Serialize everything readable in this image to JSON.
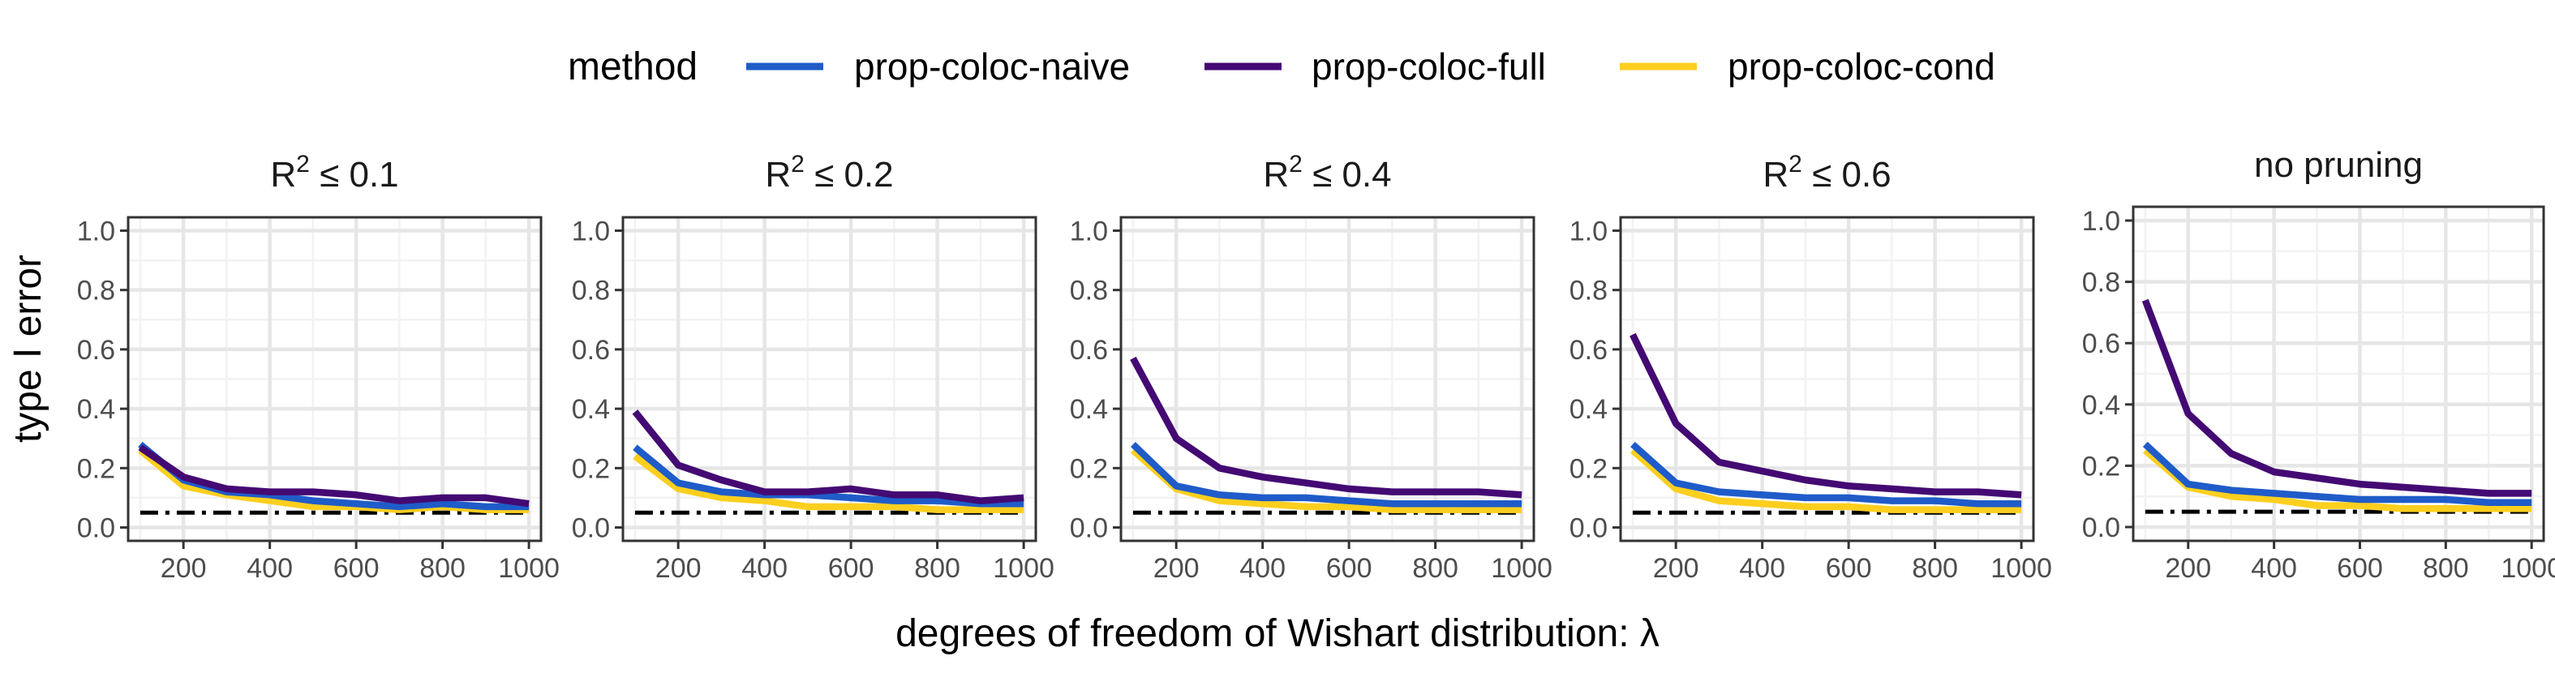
{
  "chart_data": {
    "type": "line",
    "legend": {
      "title": "method",
      "position": "top",
      "entries": [
        {
          "name": "prop-coloc-naive",
          "color": "#1F5CC9"
        },
        {
          "name": "prop-coloc-full",
          "color": "#440A73"
        },
        {
          "name": "prop-coloc-cond",
          "color": "#FCCF1F"
        }
      ]
    },
    "xlabel_prefix": "degrees of freedom of Wishart distribution: ",
    "xlabel_symbol": "λ",
    "ylabel": "type I error",
    "x": [
      100,
      200,
      300,
      400,
      500,
      600,
      700,
      800,
      900,
      1000
    ],
    "xticks": [
      200,
      400,
      600,
      800,
      1000
    ],
    "xtick_labels": [
      "200",
      "400",
      "600",
      "800",
      "1000"
    ],
    "xlim": [
      72,
      1028
    ],
    "yticks": [
      0.0,
      0.2,
      0.4,
      0.6,
      0.8,
      1.0
    ],
    "ytick_labels": [
      "0.0",
      "0.2",
      "0.4",
      "0.6",
      "0.8",
      "1.0"
    ],
    "ylim": [
      -0.045,
      1.045
    ],
    "grid": true,
    "reference_line": {
      "y": 0.05,
      "style": "dash-dot",
      "color": "#000000"
    },
    "panels": [
      {
        "title_prefix": "R",
        "title_sup": "2",
        "title_suffix": " ≤ 0.1",
        "series": [
          {
            "name": "prop-coloc-naive",
            "values": [
              0.28,
              0.16,
              0.12,
              0.11,
              0.09,
              0.08,
              0.07,
              0.08,
              0.07,
              0.07
            ]
          },
          {
            "name": "prop-coloc-full",
            "values": [
              0.27,
              0.17,
              0.13,
              0.12,
              0.12,
              0.11,
              0.09,
              0.1,
              0.1,
              0.08
            ]
          },
          {
            "name": "prop-coloc-cond",
            "values": [
              0.26,
              0.14,
              0.11,
              0.09,
              0.07,
              0.07,
              0.06,
              0.07,
              0.06,
              0.06
            ]
          }
        ]
      },
      {
        "title_prefix": "R",
        "title_sup": "2",
        "title_suffix": " ≤ 0.2",
        "series": [
          {
            "name": "prop-coloc-naive",
            "values": [
              0.27,
              0.15,
              0.12,
              0.11,
              0.11,
              0.1,
              0.09,
              0.09,
              0.08,
              0.08
            ]
          },
          {
            "name": "prop-coloc-full",
            "values": [
              0.39,
              0.21,
              0.16,
              0.12,
              0.12,
              0.13,
              0.11,
              0.11,
              0.09,
              0.1
            ]
          },
          {
            "name": "prop-coloc-cond",
            "values": [
              0.24,
              0.13,
              0.1,
              0.09,
              0.07,
              0.07,
              0.07,
              0.06,
              0.06,
              0.06
            ]
          }
        ]
      },
      {
        "title_prefix": "R",
        "title_sup": "2",
        "title_suffix": " ≤ 0.4",
        "series": [
          {
            "name": "prop-coloc-naive",
            "values": [
              0.28,
              0.14,
              0.11,
              0.1,
              0.1,
              0.09,
              0.08,
              0.08,
              0.08,
              0.08
            ]
          },
          {
            "name": "prop-coloc-full",
            "values": [
              0.57,
              0.3,
              0.2,
              0.17,
              0.15,
              0.13,
              0.12,
              0.12,
              0.12,
              0.11
            ]
          },
          {
            "name": "prop-coloc-cond",
            "values": [
              0.26,
              0.13,
              0.09,
              0.08,
              0.07,
              0.07,
              0.06,
              0.06,
              0.06,
              0.06
            ]
          }
        ]
      },
      {
        "title_prefix": "R",
        "title_sup": "2",
        "title_suffix": " ≤ 0.6",
        "series": [
          {
            "name": "prop-coloc-naive",
            "values": [
              0.28,
              0.15,
              0.12,
              0.11,
              0.1,
              0.1,
              0.09,
              0.09,
              0.08,
              0.08
            ]
          },
          {
            "name": "prop-coloc-full",
            "values": [
              0.65,
              0.35,
              0.22,
              0.19,
              0.16,
              0.14,
              0.13,
              0.12,
              0.12,
              0.11
            ]
          },
          {
            "name": "prop-coloc-cond",
            "values": [
              0.26,
              0.13,
              0.09,
              0.08,
              0.07,
              0.07,
              0.06,
              0.06,
              0.06,
              0.06
            ]
          }
        ]
      },
      {
        "title_prefix": "",
        "title_sup": "",
        "title_suffix": "no pruning",
        "series": [
          {
            "name": "prop-coloc-naive",
            "values": [
              0.27,
              0.14,
              0.12,
              0.11,
              0.1,
              0.09,
              0.09,
              0.09,
              0.08,
              0.08
            ]
          },
          {
            "name": "prop-coloc-full",
            "values": [
              0.74,
              0.37,
              0.24,
              0.18,
              0.16,
              0.14,
              0.13,
              0.12,
              0.11,
              0.11
            ]
          },
          {
            "name": "prop-coloc-cond",
            "values": [
              0.25,
              0.13,
              0.1,
              0.09,
              0.07,
              0.07,
              0.06,
              0.06,
              0.06,
              0.06
            ]
          }
        ]
      }
    ]
  }
}
